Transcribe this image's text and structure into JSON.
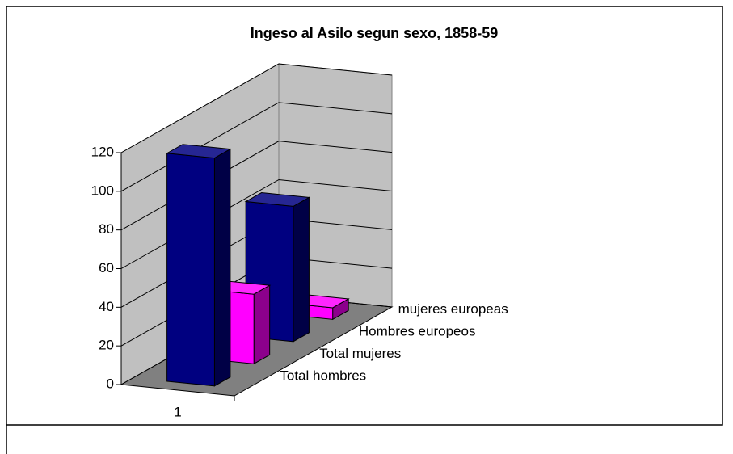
{
  "chart_data": {
    "type": "bar3d",
    "title": "Ingeso al Asilo segun sexo, 1858-59",
    "categories": [
      "1"
    ],
    "series": [
      {
        "name": "Total hombres",
        "color": "#000080",
        "values": [
          118
        ]
      },
      {
        "name": "Total mujeres",
        "color": "#ff00ff",
        "values": [
          36
        ]
      },
      {
        "name": "Hombres europeos",
        "color": "#000080",
        "values": [
          70
        ]
      },
      {
        "name": "mujeres europeas",
        "color": "#ff00ff",
        "values": [
          6
        ]
      }
    ],
    "ylim": [
      0,
      120
    ],
    "yticks": [
      0,
      20,
      40,
      60,
      80,
      100,
      120
    ],
    "grid": true
  }
}
